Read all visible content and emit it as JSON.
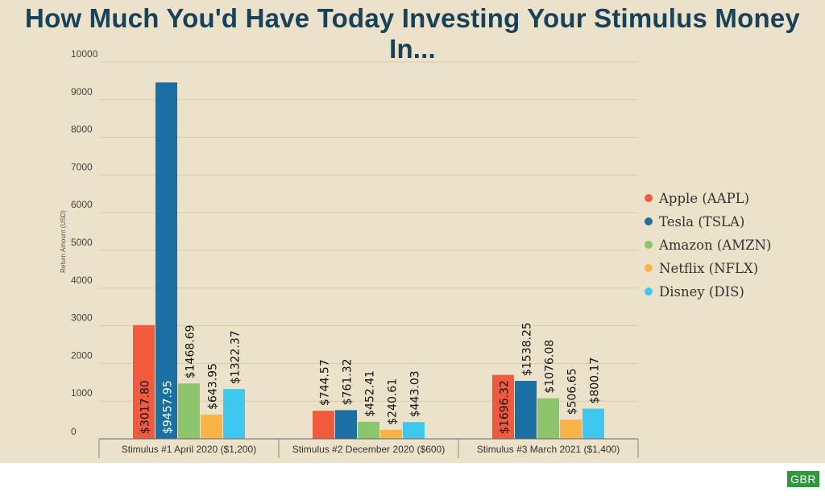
{
  "title": "How Much You'd Have Today Investing Your Stimulus Money In...",
  "logo_text": "GBR",
  "colors": {
    "background": "#ece2c9",
    "title": "#16425b",
    "series": [
      "#f25a3d",
      "#1a6fa3",
      "#8cc56b",
      "#f9b347",
      "#3ec8ef"
    ]
  },
  "chart_data": {
    "type": "bar",
    "title": "How Much You'd Have Today Investing Your Stimulus Money In...",
    "xlabel": "",
    "ylabel": "Return Amount (USD)",
    "ylim": [
      0,
      10000
    ],
    "yticks": [
      "0",
      "1000",
      "2000",
      "3000",
      "4000",
      "5000",
      "6000",
      "7000",
      "8000",
      "9000",
      "10000"
    ],
    "grid": true,
    "legend_position": "right",
    "categories": [
      "Stimulus #1 April 2020 ($1,200)",
      "Stimulus #2 December 2020 ($600)",
      "Stimulus #3 March 2021 ($1,400)"
    ],
    "series": [
      {
        "name": "Apple (AAPL)",
        "values": [
          3017.8,
          744.57,
          1696.32
        ],
        "labels": [
          "$3017.80",
          "$744.57",
          "$1696.32"
        ]
      },
      {
        "name": "Tesla (TSLA)",
        "values": [
          9457.95,
          761.32,
          1538.25
        ],
        "labels": [
          "$9457.95",
          "$761.32",
          "$1538.25"
        ]
      },
      {
        "name": "Amazon (AMZN)",
        "values": [
          1468.69,
          452.41,
          1076.08
        ],
        "labels": [
          "$1468.69",
          "$452.41",
          "$1076.08"
        ]
      },
      {
        "name": "Netflix (NFLX)",
        "values": [
          643.95,
          240.61,
          506.65
        ],
        "labels": [
          "$643.95",
          "$240.61",
          "$506.65"
        ]
      },
      {
        "name": "Disney (DIS)",
        "values": [
          1322.37,
          443.03,
          800.17
        ],
        "labels": [
          "$1322.37",
          "$443.03",
          "$800.17"
        ]
      }
    ]
  }
}
